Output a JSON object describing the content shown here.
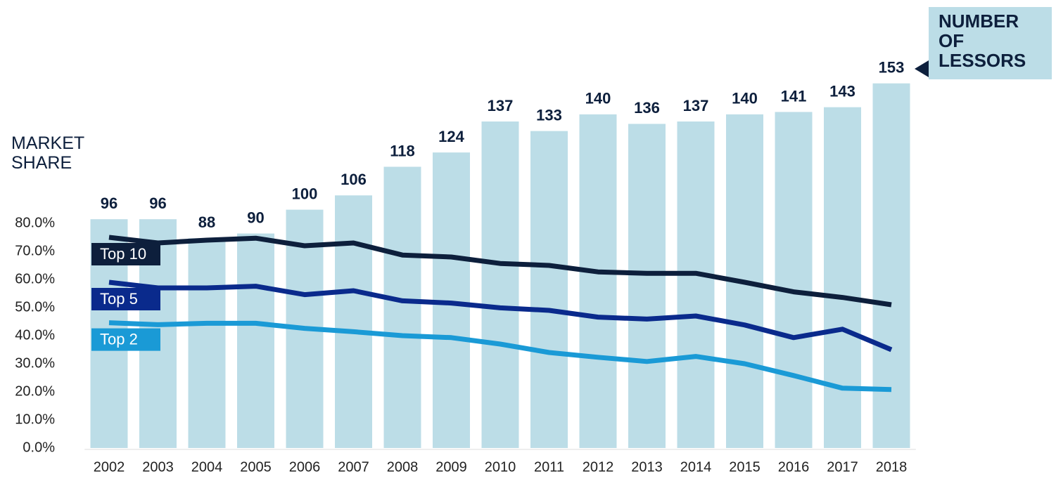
{
  "chart_data": {
    "type": "bar-line",
    "y_label": "MARKET SHARE",
    "categories": [
      "2002",
      "2003",
      "2004",
      "2005",
      "2006",
      "2007",
      "2008",
      "2009",
      "2010",
      "2011",
      "2012",
      "2013",
      "2014",
      "2015",
      "2016",
      "2017",
      "2018"
    ],
    "series": [
      {
        "name": "NUMBER OF LESSORS",
        "type": "bar",
        "axis": "y2",
        "color": "#bcdde7",
        "values": [
          96,
          96,
          88,
          90,
          100,
          106,
          118,
          124,
          137,
          133,
          140,
          136,
          137,
          140,
          141,
          143,
          153
        ]
      },
      {
        "name": "Top 10",
        "type": "line",
        "color": "#0d1f3c",
        "values": [
          75,
          73,
          74,
          74.7,
          72,
          73,
          68.7,
          68,
          65.7,
          65,
          62.7,
          62.2,
          62.2,
          59,
          55.6,
          53.6,
          51
        ]
      },
      {
        "name": "Top 5",
        "type": "line",
        "color": "#0a2a8c",
        "values": [
          59,
          57,
          57,
          57.6,
          54.6,
          56,
          52.4,
          51.6,
          49.9,
          49,
          46.6,
          45.9,
          47,
          43.8,
          39.3,
          42.3,
          35
        ]
      },
      {
        "name": "Top 2",
        "type": "line",
        "color": "#1a9ad6",
        "values": [
          44.6,
          43.9,
          44.4,
          44.4,
          42.6,
          41.4,
          40,
          39.3,
          37,
          34,
          32.3,
          30.8,
          32.6,
          30,
          25.8,
          21.3,
          20.8
        ]
      }
    ],
    "ylim": [
      0,
      140
    ],
    "yticks": [
      {
        "value": 0,
        "label": "0.0%"
      },
      {
        "value": 10,
        "label": "10.0%"
      },
      {
        "value": 20,
        "label": "20.0%"
      },
      {
        "value": 30,
        "label": "30.0%"
      },
      {
        "value": 40,
        "label": "40.0%"
      },
      {
        "value": 50,
        "label": "50.0%"
      },
      {
        "value": 60,
        "label": "60.0%"
      },
      {
        "value": 70,
        "label": "70.0%"
      },
      {
        "value": 80,
        "label": "80.0%"
      }
    ],
    "y2lim": [
      0,
      165
    ]
  }
}
